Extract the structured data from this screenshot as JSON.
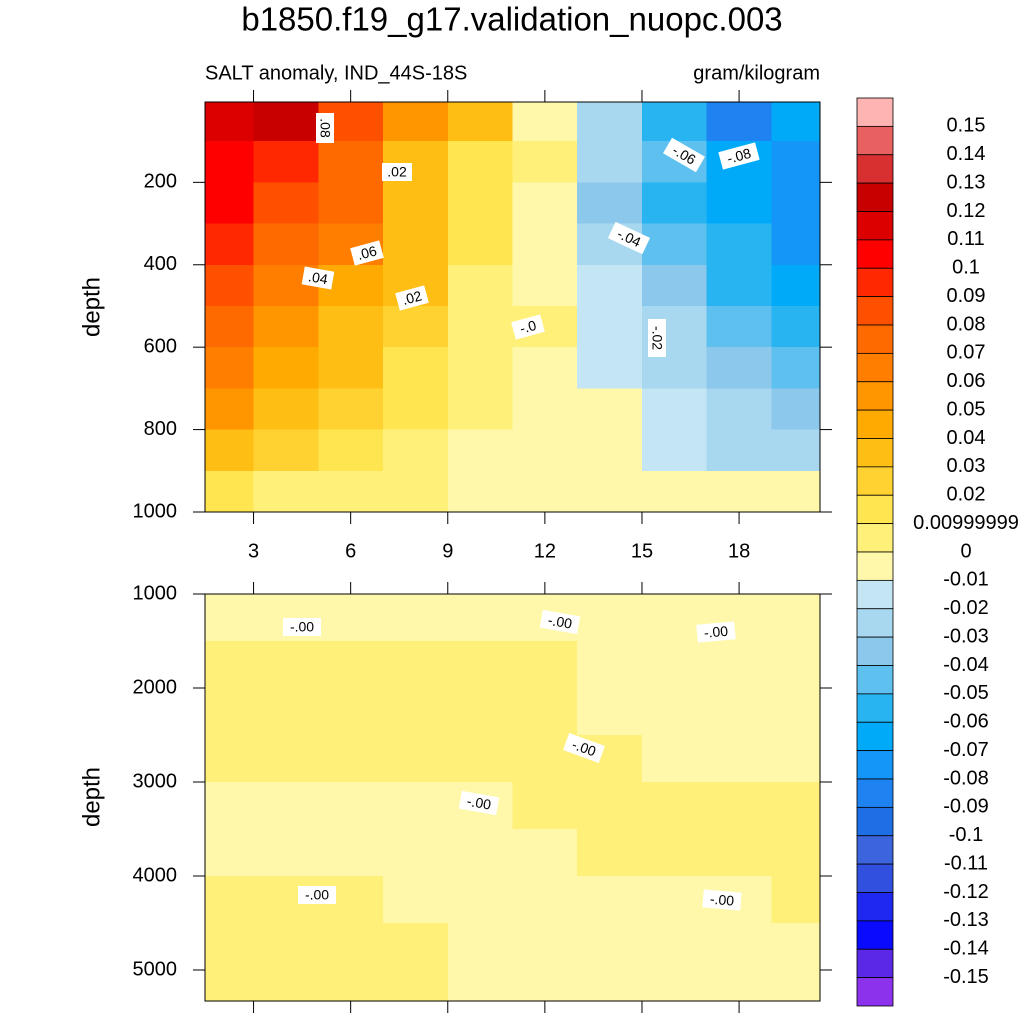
{
  "title": "b1850.f19_g17.validation_nuopc.003",
  "subtitle": "SALT anomaly, IND_44S-18S",
  "units": "gram/kilogram",
  "chart_data": [
    {
      "type": "contour",
      "ylabel": "depth",
      "x": [
        2,
        4,
        6,
        8,
        10,
        12,
        14,
        16,
        18,
        20
      ],
      "y": [
        50,
        150,
        250,
        350,
        450,
        550,
        650,
        750,
        850,
        950
      ],
      "z": [
        [
          0.11,
          0.12,
          0.08,
          0.05,
          0.03,
          -0.01,
          -0.03,
          -0.06,
          -0.09,
          -0.07
        ],
        [
          0.1,
          0.09,
          0.07,
          0.03,
          0.01,
          0.001,
          -0.03,
          -0.05,
          -0.07,
          -0.08
        ],
        [
          0.1,
          0.08,
          0.07,
          0.03,
          0.01,
          -0.005,
          -0.04,
          -0.06,
          -0.07,
          -0.08
        ],
        [
          0.09,
          0.07,
          0.06,
          0.03,
          0.01,
          -0.005,
          -0.03,
          -0.05,
          -0.06,
          -0.08
        ],
        [
          0.08,
          0.06,
          0.04,
          0.03,
          0.005,
          -0.005,
          -0.02,
          -0.04,
          -0.06,
          -0.07
        ],
        [
          0.07,
          0.05,
          0.03,
          0.02,
          0.005,
          0.003,
          -0.02,
          -0.03,
          -0.05,
          -0.06
        ],
        [
          0.06,
          0.04,
          0.03,
          0.01,
          0.005,
          -0.005,
          -0.02,
          -0.03,
          -0.04,
          -0.05
        ],
        [
          0.05,
          0.03,
          0.02,
          0.01,
          0.005,
          -0.005,
          -0.01,
          -0.02,
          -0.03,
          -0.04
        ],
        [
          0.03,
          0.02,
          0.01,
          0.005,
          -0.003,
          -0.005,
          -0.01,
          -0.02,
          -0.03,
          -0.03
        ],
        [
          0.01,
          0.005,
          0.005,
          0.005,
          -0.002,
          -0.003,
          -0.005,
          -0.01,
          -0.01,
          -0.01
        ]
      ],
      "xlim": [
        1.5,
        20.5
      ],
      "ylim": [
        5,
        1000
      ],
      "xticks": [
        3,
        6,
        9,
        12,
        15,
        18
      ],
      "yticks": [
        200,
        400,
        600,
        800,
        1000
      ],
      "xticklabels": true,
      "contour_labels": [
        ".08",
        ".02",
        ".06",
        ".04",
        ".02",
        "-.0",
        "-.04",
        "-.06",
        "-.08",
        "-.02"
      ]
    },
    {
      "type": "contour",
      "ylabel": "depth",
      "x": [
        2,
        4,
        6,
        8,
        10,
        12,
        14,
        16,
        18,
        20
      ],
      "y": [
        1250,
        1750,
        2250,
        2750,
        3250,
        3750,
        4250,
        4750,
        5250
      ],
      "z": [
        [
          -0.001,
          -0.001,
          -0.001,
          -0.001,
          -0.001,
          -0.001,
          -0.001,
          -0.001,
          -0.001,
          -0.001
        ],
        [
          0.001,
          0.001,
          0.001,
          0.001,
          0.001,
          0.001,
          -0.001,
          -0.001,
          -0.001,
          -0.001
        ],
        [
          0.001,
          0.001,
          0.001,
          0.001,
          0.001,
          0.001,
          -0.001,
          -0.001,
          -0.001,
          -0.001
        ],
        [
          0.001,
          0.001,
          0.001,
          0.001,
          0.001,
          0.001,
          0.001,
          -0.001,
          -0.001,
          -0.001
        ],
        [
          -0.001,
          -0.001,
          -0.001,
          -0.001,
          -0.001,
          0.001,
          0.001,
          0.001,
          0.001,
          0.001
        ],
        [
          -0.001,
          -0.001,
          -0.001,
          -0.001,
          -0.001,
          -0.001,
          0.001,
          0.001,
          0.001,
          0.001
        ],
        [
          0.001,
          0.001,
          0.001,
          -0.001,
          -0.001,
          -0.001,
          -0.001,
          -0.001,
          -0.001,
          0.001
        ],
        [
          0.001,
          0.001,
          0.001,
          0.001,
          -0.001,
          -0.001,
          -0.001,
          -0.001,
          -0.001,
          -0.001
        ],
        [
          0.001,
          0.001,
          0.001,
          0.001,
          -0.001,
          -0.001,
          -0.001,
          -0.001,
          -0.001,
          -0.001
        ]
      ],
      "xlim": [
        1.5,
        20.5
      ],
      "ylim": [
        1000,
        5330
      ],
      "xticks": [
        3,
        6,
        9,
        12,
        15,
        18
      ],
      "yticks": [
        1000,
        2000,
        3000,
        4000,
        5000
      ],
      "xticklabels": false,
      "contour_labels": [
        "-.00",
        "-.00",
        "-.00",
        "-.00",
        "-.00",
        "-.00",
        "-.00"
      ]
    }
  ],
  "colorbar": {
    "levels": [
      0.15,
      0.14,
      0.13,
      0.12,
      0.11,
      0.1,
      0.09,
      0.08,
      0.07,
      0.06,
      0.05,
      0.04,
      0.03,
      0.02,
      0.00999999,
      0,
      -0.01,
      -0.02,
      -0.03,
      -0.04,
      -0.05,
      -0.06,
      -0.07,
      -0.08,
      -0.09,
      -0.1,
      -0.11,
      -0.12,
      -0.13,
      -0.14,
      -0.15
    ],
    "colors": [
      "#FFB4B4",
      "#E86060",
      "#D83030",
      "#C80000",
      "#DC0000",
      "#FF0000",
      "#FF2800",
      "#FF5000",
      "#FF6A00",
      "#FF7E00",
      "#FF9600",
      "#FFAA00",
      "#FFBE14",
      "#FFD232",
      "#FFE650",
      "#FFF07A",
      "#FFF8AA",
      "#C4E6F4",
      "#A8D8F0",
      "#8CC8EC",
      "#5EC0EE",
      "#28B4F0",
      "#00AAF8",
      "#1496F8",
      "#1E82F0",
      "#1E6EE6",
      "#3C64DC",
      "#3250E0",
      "#1E28F0",
      "#0A0AFF",
      "#5A28E6",
      "#8C32EC"
    ]
  }
}
